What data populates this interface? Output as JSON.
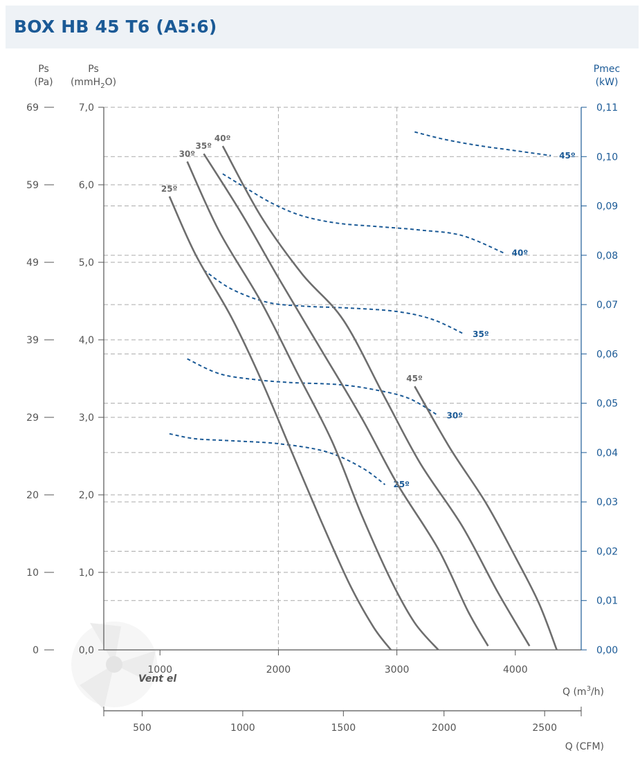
{
  "header": {
    "title": "BOX HB 45 T6 (A5:6)"
  },
  "axes": {
    "pa_label": [
      "Ps",
      "(Pa)"
    ],
    "mm_label": [
      "Ps",
      "(mmH",
      "2",
      "O)"
    ],
    "pmec_label": [
      "Pmec",
      "(kW)"
    ],
    "q_label": "Q (m",
    "q_label_sup": "3",
    "q_label_end": "/h)",
    "cfm_label": "Q (CFM)"
  },
  "colors": {
    "title": "#1b5a96",
    "pressure_curve": "#6e6e6e",
    "power_curve": "#1b5a96",
    "grid": "#aaaaaa",
    "axis": "#555555",
    "watermark": "#ececec"
  },
  "watermark": "Vent el",
  "chart_data": {
    "type": "line",
    "x_axis": {
      "name": "Q (m3/h)",
      "ticks": [
        1000,
        2000,
        3000,
        4000
      ],
      "tick_labels": [
        "1000",
        "2000",
        "3000",
        "4000"
      ],
      "range": [
        0,
        4600
      ]
    },
    "x_axis_secondary": {
      "name": "Q (CFM)",
      "ticks": [
        500,
        1000,
        1500,
        2000,
        2500
      ],
      "tick_labels": [
        "500",
        "1000",
        "1500",
        "2000",
        "2500"
      ]
    },
    "y_axis_left_mm": {
      "name": "Ps (mmH2O)",
      "range": [
        0,
        7
      ],
      "ticks": [
        0,
        1,
        2,
        3,
        4,
        5,
        6,
        7
      ],
      "tick_labels": [
        "0,0",
        "1,0",
        "2,0",
        "3,0",
        "4,0",
        "5,0",
        "6,0",
        "7,0"
      ]
    },
    "y_axis_left_pa": {
      "name": "Ps (Pa)",
      "ticks": [
        0,
        10,
        20,
        29,
        39,
        49,
        59,
        69
      ],
      "tick_labels": [
        "0",
        "10",
        "20",
        "29",
        "39",
        "49",
        "59",
        "69"
      ]
    },
    "y_axis_right": {
      "name": "Pmec (kW)",
      "range": [
        0,
        0.11
      ],
      "ticks": [
        0,
        0.01,
        0.02,
        0.03,
        0.04,
        0.05,
        0.06,
        0.07,
        0.08,
        0.09,
        0.1,
        0.11
      ],
      "tick_labels": [
        "0,00",
        "0,01",
        "0,02",
        "0,03",
        "0,04",
        "0,05",
        "0,06",
        "0,07",
        "0,08",
        "0,09",
        "0,10",
        "0,11"
      ]
    },
    "grid": true,
    "pressure_series": [
      {
        "name": "25º",
        "x": [
          1080,
          1300,
          1600,
          1850,
          2100,
          2350,
          2600,
          2800,
          2950
        ],
        "y": [
          5.85,
          5.1,
          4.3,
          3.5,
          2.6,
          1.7,
          0.85,
          0.3,
          0.0
        ]
      },
      {
        "name": "30º",
        "x": [
          1230,
          1500,
          1850,
          2150,
          2450,
          2700,
          2950,
          3150,
          3350
        ],
        "y": [
          6.3,
          5.4,
          4.5,
          3.6,
          2.7,
          1.75,
          0.9,
          0.35,
          0.0
        ]
      },
      {
        "name": "35º",
        "x": [
          1370,
          1700,
          2000,
          2350,
          2700,
          3000,
          3350,
          3600,
          3770
        ],
        "y": [
          6.4,
          5.6,
          4.8,
          3.9,
          3.0,
          2.15,
          1.3,
          0.5,
          0.05
        ]
      },
      {
        "name": "40º",
        "x": [
          1530,
          1850,
          2200,
          2550,
          2900,
          3200,
          3550,
          3850,
          4120
        ],
        "y": [
          6.5,
          5.6,
          4.85,
          4.25,
          3.25,
          2.4,
          1.6,
          0.75,
          0.05
        ]
      },
      {
        "name": "45º",
        "x": [
          3150,
          3450,
          3750,
          4000,
          4200,
          4350
        ],
        "y": [
          3.4,
          2.6,
          1.9,
          1.2,
          0.6,
          0.0
        ]
      }
    ],
    "power_series": [
      {
        "name": "25º",
        "x": [
          1080,
          1300,
          1600,
          2000,
          2400,
          2700,
          2900
        ],
        "y": [
          0.0438,
          0.0428,
          0.0424,
          0.0418,
          0.0402,
          0.037,
          0.0335
        ]
      },
      {
        "name": "30º",
        "x": [
          1230,
          1500,
          1800,
          2100,
          2500,
          2800,
          3100,
          3350
        ],
        "y": [
          0.059,
          0.056,
          0.0548,
          0.0542,
          0.0538,
          0.0528,
          0.051,
          0.0475
        ]
      },
      {
        "name": "35º",
        "x": [
          1370,
          1600,
          1900,
          2200,
          2600,
          3000,
          3300,
          3570
        ],
        "y": [
          0.077,
          0.0732,
          0.0705,
          0.0697,
          0.0693,
          0.0686,
          0.067,
          0.064
        ]
      },
      {
        "name": "40º",
        "x": [
          1530,
          1700,
          1950,
          2200,
          2500,
          2850,
          3200,
          3550,
          3900
        ],
        "y": [
          0.0965,
          0.094,
          0.0905,
          0.088,
          0.0865,
          0.0858,
          0.0851,
          0.084,
          0.0805
        ]
      },
      {
        "name": "45º",
        "x": [
          3150,
          3400,
          3700,
          4000,
          4300
        ],
        "y": [
          0.105,
          0.1035,
          0.1022,
          0.1012,
          0.1002
        ]
      }
    ]
  }
}
